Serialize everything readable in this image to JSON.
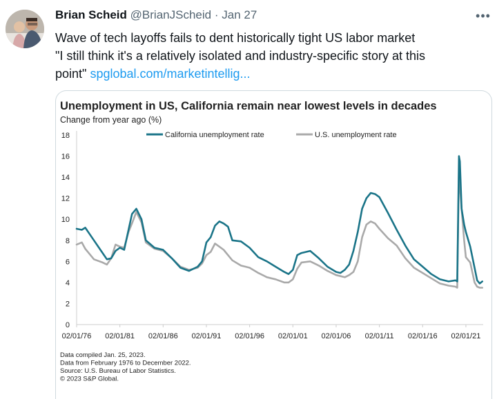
{
  "tweet": {
    "author_name": "Brian Scheid",
    "handle": "@BrianJScheid",
    "separator": "·",
    "date": "Jan 27",
    "more_icon": "more-horizontal-icon",
    "text_line1": "Wave of tech layoffs fails to dent historically tight US labor market",
    "text_line2": "\"I still think it's a relatively isolated and industry-specific story at this",
    "text_line3": "point\" ",
    "link_text": "spglobal.com/marketintellig..."
  },
  "chart_data": {
    "type": "line",
    "title": "Unemployment in US, California remain near lowest levels in decades",
    "subtitle": "Change from year ago (%)",
    "ylim": [
      0,
      18
    ],
    "yticks": [
      0,
      2,
      4,
      6,
      8,
      10,
      12,
      14,
      16,
      18
    ],
    "xlim": [
      1976,
      2023
    ],
    "xticks": [
      1976,
      1981,
      1986,
      1991,
      1996,
      2001,
      2006,
      2011,
      2016,
      2021
    ],
    "xtick_labels": [
      "02/01/76",
      "02/01/81",
      "02/01/86",
      "02/01/91",
      "02/01/96",
      "02/01/01",
      "02/01/06",
      "02/01/11",
      "02/01/16",
      "02/01/21"
    ],
    "legend_position": "top-center",
    "series": [
      {
        "name": "California unemployment rate",
        "color": "#1a7488",
        "x": [
          1976,
          1976.6,
          1977,
          1978,
          1979,
          1979.5,
          1980,
          1980.5,
          1981,
          1981.5,
          1982,
          1982.4,
          1982.9,
          1983.5,
          1984,
          1985,
          1986,
          1987,
          1988,
          1989,
          1990,
          1990.5,
          1991,
          1991.5,
          1992,
          1992.5,
          1993,
          1993.5,
          1994,
          1995,
          1996,
          1997,
          1998,
          1999,
          2000,
          2000.5,
          2001,
          2001.5,
          2002,
          2003,
          2004,
          2005,
          2006,
          2006.5,
          2007,
          2007.5,
          2008,
          2008.5,
          2009,
          2009.5,
          2010,
          2010.5,
          2011,
          2012,
          2013,
          2014,
          2015,
          2016,
          2017,
          2018,
          2019,
          2019.8,
          2020.0,
          2020.2,
          2020.3,
          2020.5,
          2020.8,
          2021,
          2021.5,
          2022,
          2022.3,
          2022.6,
          2022.9
        ],
        "y": [
          9.1,
          9.0,
          9.2,
          8.0,
          6.8,
          6.2,
          6.3,
          7.0,
          7.3,
          7.1,
          9.0,
          10.5,
          11.0,
          10.0,
          8.0,
          7.3,
          7.1,
          6.3,
          5.4,
          5.1,
          5.5,
          6.0,
          7.8,
          8.3,
          9.4,
          9.8,
          9.6,
          9.3,
          8.0,
          7.9,
          7.3,
          6.4,
          6.0,
          5.5,
          5.0,
          4.8,
          5.2,
          6.6,
          6.8,
          7.0,
          6.3,
          5.5,
          5.0,
          4.9,
          5.2,
          5.7,
          7.0,
          8.8,
          11.0,
          12.0,
          12.5,
          12.4,
          12.1,
          10.6,
          9.0,
          7.5,
          6.2,
          5.5,
          4.8,
          4.3,
          4.1,
          4.2,
          4.1,
          16.0,
          15.5,
          11.0,
          9.5,
          8.8,
          7.4,
          5.4,
          4.2,
          3.9,
          4.1
        ]
      },
      {
        "name": "U.S. unemployment rate",
        "color": "#a9a9a9",
        "x": [
          1976,
          1976.6,
          1977,
          1978,
          1979,
          1979.5,
          1980,
          1980.5,
          1981,
          1981.5,
          1982,
          1982.4,
          1982.9,
          1983.5,
          1984,
          1985,
          1986,
          1987,
          1988,
          1989,
          1990,
          1990.5,
          1991,
          1991.5,
          1992,
          1992.5,
          1993,
          1993.5,
          1994,
          1995,
          1996,
          1997,
          1998,
          1999,
          2000,
          2000.5,
          2001,
          2001.5,
          2002,
          2003,
          2004,
          2005,
          2006,
          2006.5,
          2007,
          2007.5,
          2008,
          2008.5,
          2009,
          2009.5,
          2010,
          2010.5,
          2011,
          2012,
          2013,
          2014,
          2015,
          2016,
          2017,
          2018,
          2019,
          2019.8,
          2020.0,
          2020.2,
          2020.3,
          2020.5,
          2020.8,
          2021,
          2021.5,
          2022,
          2022.3,
          2022.6,
          2022.9
        ],
        "y": [
          7.6,
          7.8,
          7.2,
          6.2,
          5.9,
          5.7,
          6.3,
          7.6,
          7.4,
          7.3,
          8.8,
          9.6,
          10.7,
          9.7,
          7.8,
          7.2,
          7.0,
          6.3,
          5.5,
          5.2,
          5.4,
          5.8,
          6.6,
          6.9,
          7.7,
          7.4,
          7.1,
          6.6,
          6.1,
          5.6,
          5.4,
          4.9,
          4.5,
          4.3,
          4.0,
          4.0,
          4.3,
          5.3,
          5.9,
          6.0,
          5.6,
          5.1,
          4.7,
          4.6,
          4.5,
          4.7,
          5.0,
          6.0,
          8.3,
          9.5,
          9.8,
          9.6,
          9.1,
          8.2,
          7.5,
          6.3,
          5.4,
          4.9,
          4.4,
          3.9,
          3.7,
          3.6,
          3.5,
          14.7,
          13.3,
          11.0,
          8.0,
          6.4,
          5.9,
          4.0,
          3.6,
          3.5,
          3.5
        ]
      }
    ],
    "notes": [
      "Data compiled Jan. 25, 2023.",
      "Data from February 1976 to December 2022.",
      "Source: U.S. Bureau of Labor Statistics.",
      "© 2023 S&P Global."
    ]
  }
}
